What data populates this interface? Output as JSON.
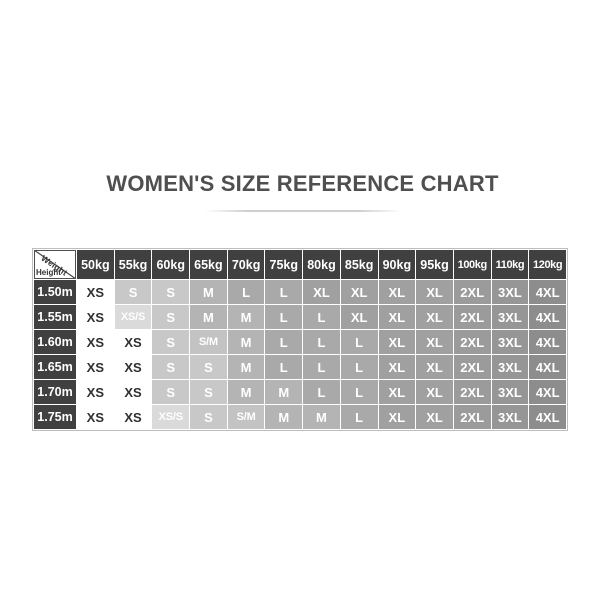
{
  "title": "WOMEN'S SIZE REFERENCE CHART",
  "chart_data": {
    "type": "table",
    "title": "WOMEN'S SIZE REFERENCE CHART",
    "corner": {
      "diagonal_top_label": "Weight",
      "diagonal_bottom_label": "Height"
    },
    "columns": [
      "50kg",
      "55kg",
      "60kg",
      "65kg",
      "70kg",
      "75kg",
      "80kg",
      "85kg",
      "90kg",
      "95kg",
      "100kg",
      "110kg",
      "120kg"
    ],
    "rows": [
      {
        "height": "1.50m",
        "sizes": [
          "XS",
          "S",
          "S",
          "M",
          "L",
          "L",
          "XL",
          "XL",
          "XL",
          "XL",
          "2XL",
          "3XL",
          "4XL"
        ]
      },
      {
        "height": "1.55m",
        "sizes": [
          "XS",
          "XS/S",
          "S",
          "M",
          "M",
          "L",
          "L",
          "XL",
          "XL",
          "XL",
          "2XL",
          "3XL",
          "4XL"
        ]
      },
      {
        "height": "1.60m",
        "sizes": [
          "XS",
          "XS",
          "S",
          "S/M",
          "M",
          "L",
          "L",
          "L",
          "XL",
          "XL",
          "2XL",
          "3XL",
          "4XL"
        ]
      },
      {
        "height": "1.65m",
        "sizes": [
          "XS",
          "XS",
          "S",
          "S",
          "M",
          "L",
          "L",
          "L",
          "XL",
          "XL",
          "2XL",
          "3XL",
          "4XL"
        ]
      },
      {
        "height": "1.70m",
        "sizes": [
          "XS",
          "XS",
          "S",
          "S",
          "M",
          "M",
          "L",
          "L",
          "XL",
          "XL",
          "2XL",
          "3XL",
          "4XL"
        ]
      },
      {
        "height": "1.75m",
        "sizes": [
          "XS",
          "XS",
          "XS/S",
          "S",
          "S/M",
          "M",
          "M",
          "L",
          "XL",
          "XL",
          "2XL",
          "3XL",
          "4XL"
        ]
      }
    ]
  },
  "style": {
    "header_bg": "#404040",
    "header_text": "#ffffff",
    "title_color": "#4f4f4f",
    "size_shades": {
      "XS": {
        "bg": "#ffffff",
        "text": "#303030"
      },
      "XS/S": {
        "bg": "#dadada",
        "text": "#fefefe"
      },
      "S": {
        "bg": "#c8c8c8",
        "text": "#ffffff"
      },
      "S/M": {
        "bg": "#c3c3c3",
        "text": "#ffffff"
      },
      "M": {
        "bg": "#b4b4b4",
        "text": "#ffffff"
      },
      "L": {
        "bg": "#a9a9a9",
        "text": "#ffffff"
      },
      "XL": {
        "bg": "#a0a0a0",
        "text": "#ffffff"
      },
      "2XL": {
        "bg": "#9b9b9b",
        "text": "#ffffff"
      },
      "3XL": {
        "bg": "#969696",
        "text": "#ffffff"
      },
      "4XL": {
        "bg": "#8d8d8d",
        "text": "#ffffff"
      }
    }
  }
}
